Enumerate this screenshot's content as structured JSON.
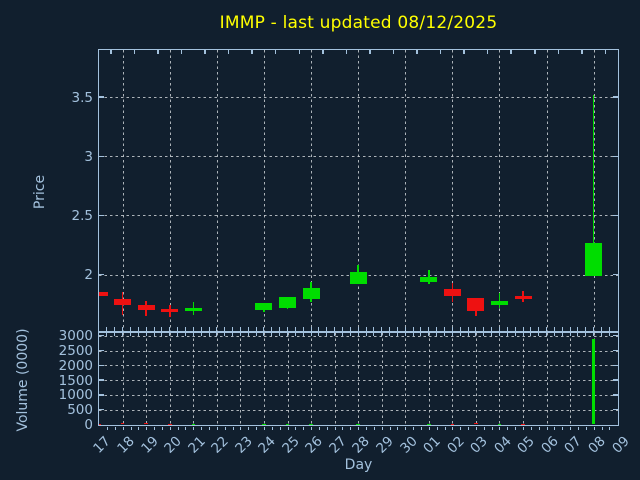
{
  "title": {
    "text": "IMMP - last updated 08/12/2025"
  },
  "colors": {
    "background": "#111f2e",
    "frame": "#a3c1dd",
    "label": "#a3c1dd",
    "grid": "#c9ced3",
    "title": "#ffff00",
    "up": "#00dd00",
    "down": "#ee1111"
  },
  "price_panel": {
    "ylabel": "Price",
    "yticks": [
      {
        "label": "3.5",
        "value": 3.5
      },
      {
        "label": "3",
        "value": 3.0
      },
      {
        "label": "2.5",
        "value": 2.5
      },
      {
        "label": "2",
        "value": 2.0
      }
    ]
  },
  "volume_panel": {
    "ylabel": "Volume (0000)",
    "yticks": [
      {
        "label": "3000",
        "value": 3000
      },
      {
        "label": "2500",
        "value": 2500
      },
      {
        "label": "2000",
        "value": 2000
      },
      {
        "label": "1500",
        "value": 1500
      },
      {
        "label": "1000",
        "value": 1000
      },
      {
        "label": "500",
        "value": 500
      },
      {
        "label": "0",
        "value": 0
      }
    ]
  },
  "x_axis": {
    "label": "Day",
    "tick_labels": [
      "17",
      "18",
      "19",
      "20",
      "21",
      "22",
      "23",
      "24",
      "25",
      "26",
      "27",
      "28",
      "29",
      "30",
      "01",
      "02",
      "03",
      "04",
      "05",
      "06",
      "07",
      "08",
      "09"
    ]
  },
  "chart_data": [
    {
      "type": "candlestick",
      "title": "IMMP - last updated 08/12/2025",
      "xlabel": "Day",
      "ylabel": "Price",
      "ylim": [
        1.52,
        3.92
      ],
      "grid": "dashed, price lines at 2/2.5/3/3.5, vertical lines on even days",
      "x_categories": [
        "17",
        "18",
        "19",
        "20",
        "21",
        "22",
        "23",
        "24",
        "25",
        "26",
        "27",
        "28",
        "29",
        "30",
        "01",
        "02",
        "03",
        "04",
        "05",
        "06",
        "07",
        "08",
        "09"
      ],
      "candles": [
        {
          "day": "17",
          "x_index": 0,
          "open": 1.85,
          "high": 1.85,
          "low": 1.82,
          "close": 1.82,
          "direction": "down"
        },
        {
          "day": "18",
          "x_index": 1,
          "open": 1.79,
          "high": 1.85,
          "low": 1.66,
          "close": 1.74,
          "direction": "down"
        },
        {
          "day": "19",
          "x_index": 2,
          "open": 1.74,
          "high": 1.78,
          "low": 1.65,
          "close": 1.7,
          "direction": "down"
        },
        {
          "day": "20",
          "x_index": 3,
          "open": 1.71,
          "high": 1.74,
          "low": 1.64,
          "close": 1.68,
          "direction": "down"
        },
        {
          "day": "21",
          "x_index": 4,
          "open": 1.69,
          "high": 1.77,
          "low": 1.66,
          "close": 1.72,
          "direction": "up"
        },
        {
          "day": "24",
          "x_index": 7,
          "open": 1.7,
          "high": 1.76,
          "low": 1.68,
          "close": 1.76,
          "direction": "up"
        },
        {
          "day": "25",
          "x_index": 8,
          "open": 1.72,
          "high": 1.81,
          "low": 1.71,
          "close": 1.81,
          "direction": "up"
        },
        {
          "day": "26",
          "x_index": 9,
          "open": 1.79,
          "high": 1.94,
          "low": 1.77,
          "close": 1.89,
          "direction": "up"
        },
        {
          "day": "28",
          "x_index": 11,
          "open": 1.92,
          "high": 2.08,
          "low": 1.92,
          "close": 2.02,
          "direction": "up"
        },
        {
          "day": "01",
          "x_index": 14,
          "open": 1.94,
          "high": 2.04,
          "low": 1.92,
          "close": 1.98,
          "direction": "up"
        },
        {
          "day": "02",
          "x_index": 15,
          "open": 1.88,
          "high": 1.93,
          "low": 1.77,
          "close": 1.82,
          "direction": "down"
        },
        {
          "day": "03",
          "x_index": 16,
          "open": 1.8,
          "high": 1.8,
          "low": 1.65,
          "close": 1.69,
          "direction": "down"
        },
        {
          "day": "04",
          "x_index": 17,
          "open": 1.74,
          "high": 1.84,
          "low": 1.72,
          "close": 1.78,
          "direction": "up"
        },
        {
          "day": "05",
          "x_index": 18,
          "open": 1.82,
          "high": 1.86,
          "low": 1.77,
          "close": 1.79,
          "direction": "down"
        },
        {
          "day": "08",
          "x_index": 21,
          "open": 1.99,
          "high": 3.52,
          "low": 1.99,
          "close": 2.27,
          "direction": "up"
        }
      ]
    },
    {
      "type": "bar",
      "xlabel": "Day",
      "ylabel": "Volume (0000)",
      "ylim": [
        0,
        3100
      ],
      "grid": "dashed, every 500, vertical line every day",
      "bars": [
        {
          "day": "17",
          "x_index": 0,
          "value": 10,
          "direction": "down"
        },
        {
          "day": "18",
          "x_index": 1,
          "value": 55,
          "direction": "down"
        },
        {
          "day": "19",
          "x_index": 2,
          "value": 50,
          "direction": "down"
        },
        {
          "day": "20",
          "x_index": 3,
          "value": 20,
          "direction": "down"
        },
        {
          "day": "21",
          "x_index": 4,
          "value": 15,
          "direction": "up"
        },
        {
          "day": "24",
          "x_index": 7,
          "value": 15,
          "direction": "up"
        },
        {
          "day": "25",
          "x_index": 8,
          "value": 20,
          "direction": "up"
        },
        {
          "day": "26",
          "x_index": 9,
          "value": 25,
          "direction": "up"
        },
        {
          "day": "28",
          "x_index": 11,
          "value": 25,
          "direction": "up"
        },
        {
          "day": "01",
          "x_index": 14,
          "value": 20,
          "direction": "up"
        },
        {
          "day": "02",
          "x_index": 15,
          "value": 25,
          "direction": "down"
        },
        {
          "day": "03",
          "x_index": 16,
          "value": 45,
          "direction": "down"
        },
        {
          "day": "04",
          "x_index": 17,
          "value": 15,
          "direction": "up"
        },
        {
          "day": "05",
          "x_index": 18,
          "value": 15,
          "direction": "down"
        },
        {
          "day": "08",
          "x_index": 21,
          "value": 2900,
          "direction": "up"
        }
      ]
    }
  ]
}
